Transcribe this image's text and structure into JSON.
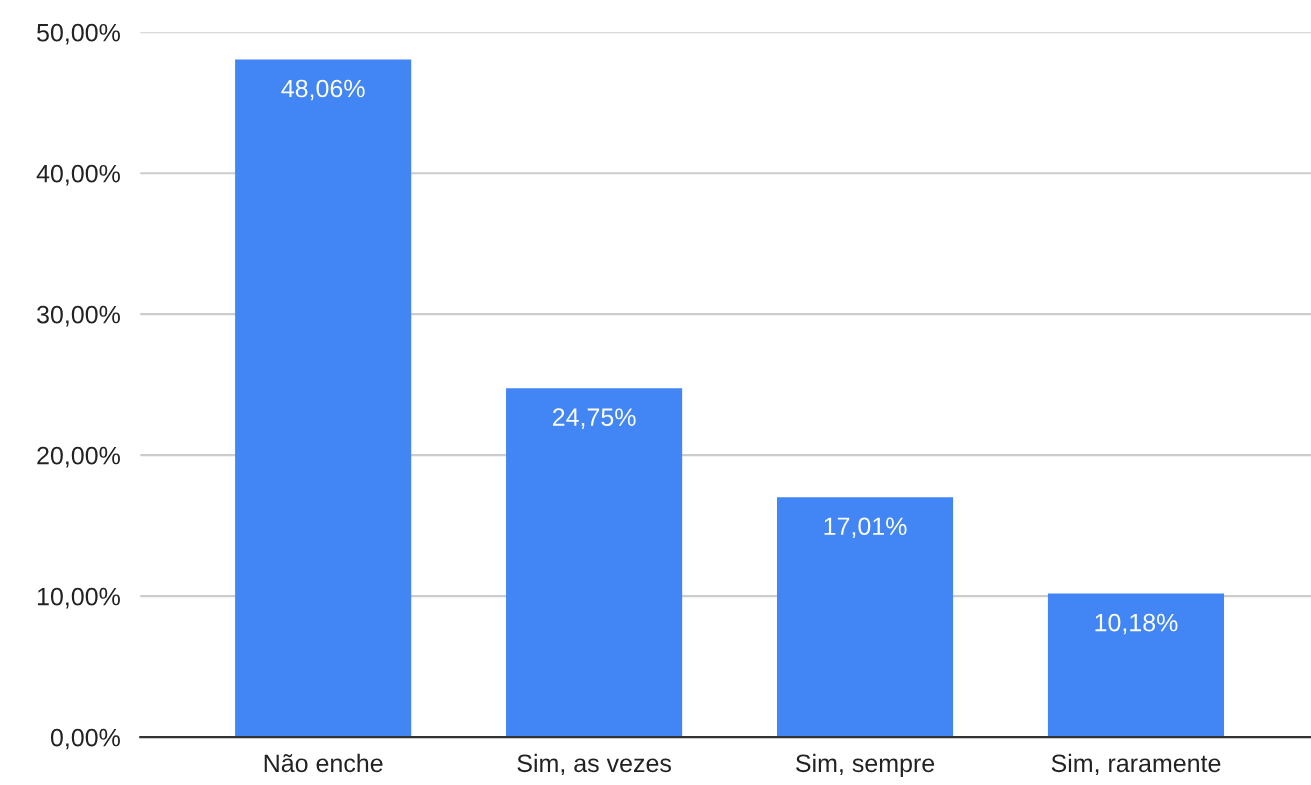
{
  "chart_data": {
    "type": "bar",
    "categories": [
      "Não enche",
      "Sim, as vezes",
      "Sim, sempre",
      "Sim, raramente"
    ],
    "values": [
      48.06,
      24.75,
      17.01,
      10.18
    ],
    "value_labels": [
      "48,06%",
      "24,75%",
      "17,01%",
      "10,18%"
    ],
    "color": "#4285f4",
    "ylim": [
      0,
      50
    ],
    "yticks": [
      {
        "value": 0,
        "label": "0,00%"
      },
      {
        "value": 10,
        "label": "10,00%"
      },
      {
        "value": 20,
        "label": "20,00%"
      },
      {
        "value": 30,
        "label": "30,00%"
      },
      {
        "value": 40,
        "label": "40,00%"
      },
      {
        "value": 50,
        "label": "50,00%"
      }
    ],
    "grid": "y",
    "legend": false
  }
}
